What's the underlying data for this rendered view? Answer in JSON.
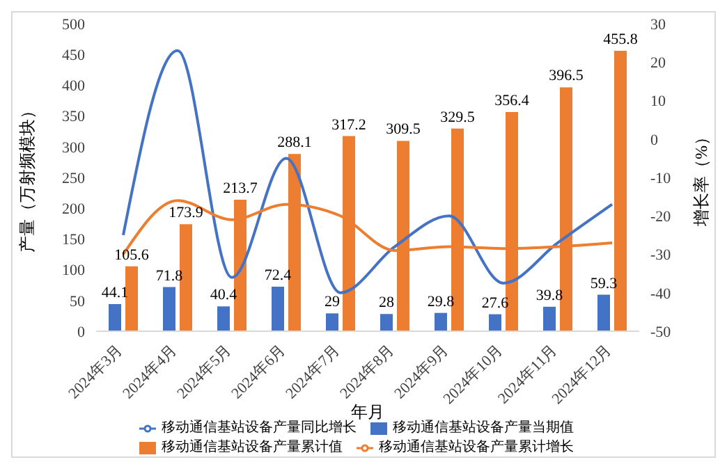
{
  "chart_data": {
    "type": "bar",
    "xlabel": "年月",
    "ylabel": "产量（万射频模块）",
    "y2label": "增长率（%）",
    "categories": [
      "2024年3月",
      "2024年4月",
      "2024年5月",
      "2024年6月",
      "2024年7月",
      "2024年8月",
      "2024年9月",
      "2024年10月",
      "2024年11月",
      "2024年12月"
    ],
    "series": [
      {
        "name": "移动通信基站设备产量当期值",
        "color": "#4472c4",
        "values": [
          44.1,
          71.8,
          40.4,
          72.4,
          29,
          28,
          29.8,
          27.6,
          39.8,
          59.3
        ],
        "value_labels": [
          "44.1",
          "71.8",
          "40.4",
          "72.4",
          "29",
          "28",
          "29.8",
          "27.6",
          "39.8",
          "59.3"
        ]
      },
      {
        "name": "移动通信基站设备产量累计值",
        "color": "#ed7d31",
        "values": [
          105.6,
          173.9,
          213.7,
          288.1,
          317.2,
          309.5,
          329.5,
          356.4,
          396.5,
          455.8
        ],
        "value_labels": [
          "105.6",
          "173.9",
          "213.7",
          "288.1",
          "317.2",
          "309.5",
          "329.5",
          "356.4",
          "396.5",
          "455.8"
        ]
      },
      {
        "name": "移动通信基站设备产量同比增长",
        "type": "line",
        "axis": "y2",
        "color": "#4472c4",
        "values": [
          -25,
          23,
          -36,
          -5,
          -40,
          -28,
          -20,
          -37.5,
          -27,
          -17
        ]
      },
      {
        "name": "移动通信基站设备产量累计增长",
        "type": "line",
        "axis": "y2",
        "color": "#ed7d31",
        "values": [
          -30,
          -16,
          -21,
          -17,
          -20,
          -29,
          -28,
          -28.5,
          -28,
          -27
        ]
      }
    ],
    "ylim": [
      0,
      500
    ],
    "yticks": [
      0,
      50,
      100,
      150,
      200,
      250,
      300,
      350,
      400,
      450,
      500
    ],
    "y2lim": [
      -50,
      30
    ],
    "y2ticks": [
      -50,
      -40,
      -30,
      -20,
      -10,
      0,
      10,
      20,
      30
    ],
    "legend": "bottom",
    "marker": "none"
  }
}
